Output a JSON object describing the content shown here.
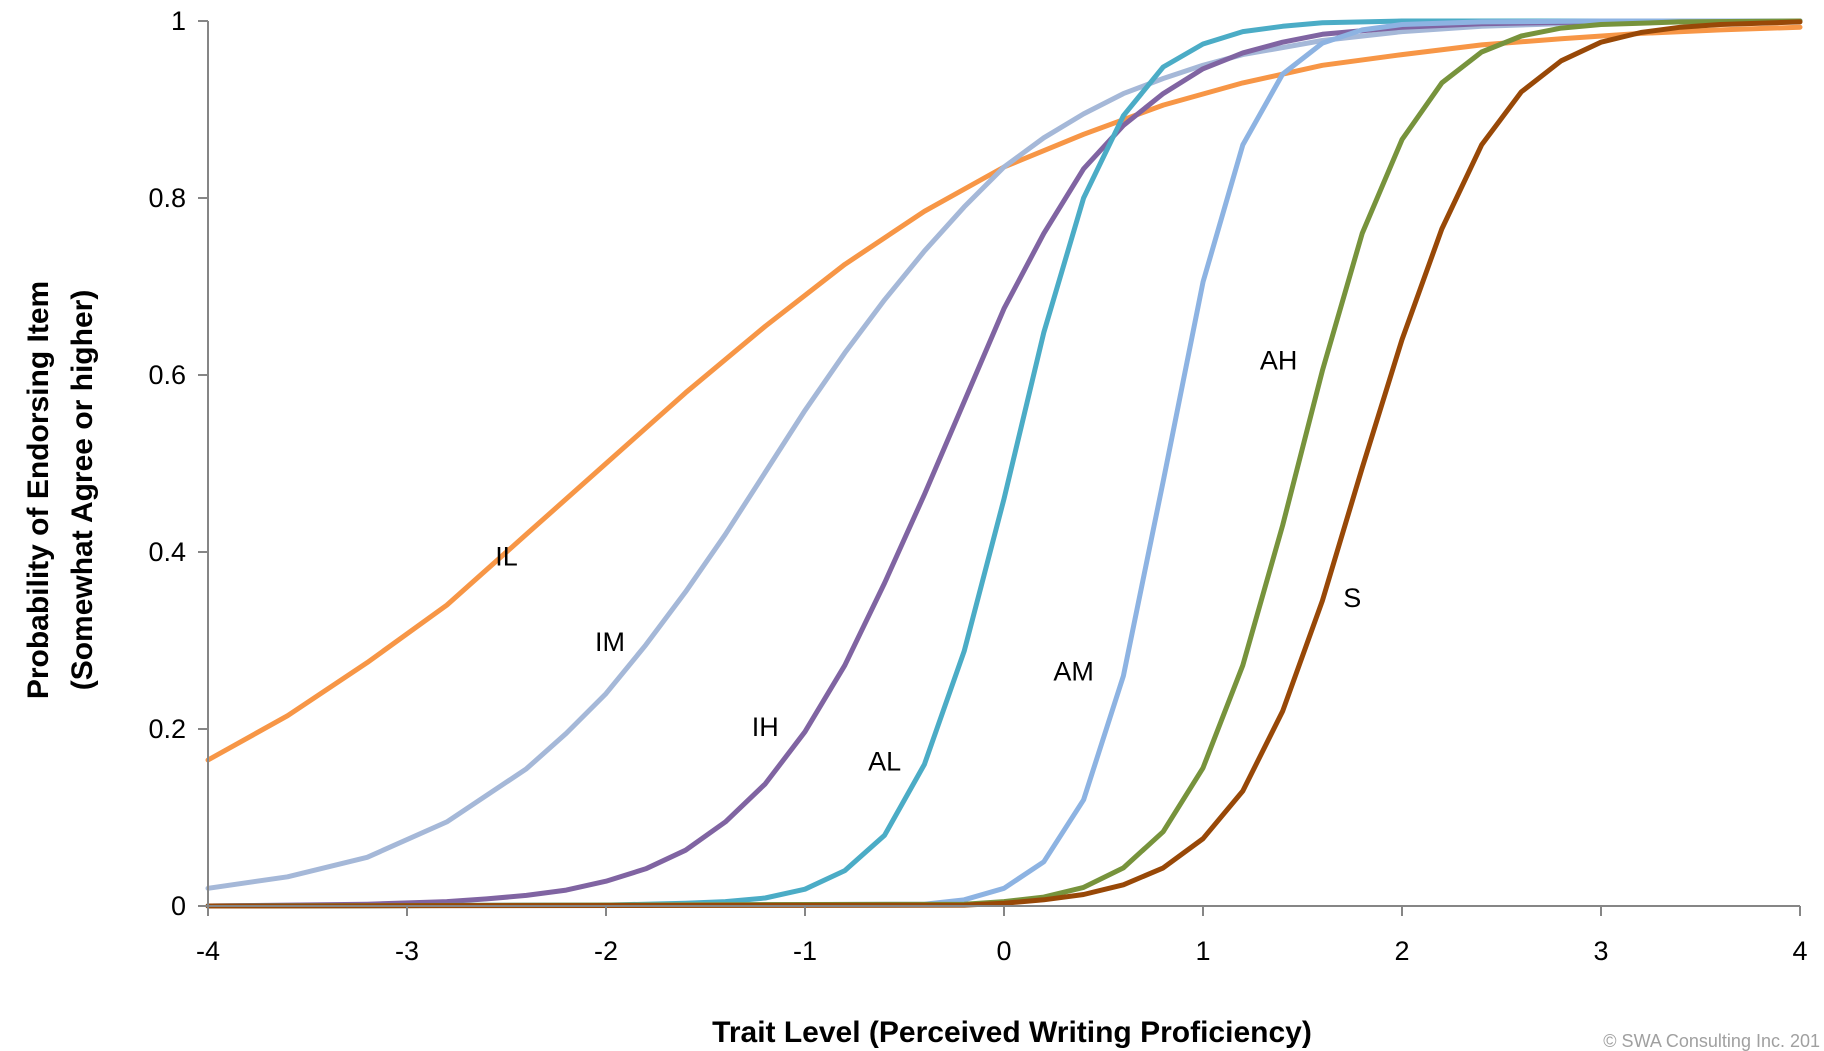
{
  "chart_data": {
    "type": "line",
    "xlabel": "Trait Level (Perceived Writing Proficiency)",
    "ylabel_line1": "Probability of Endorsing Item",
    "ylabel_line2": "(Somewhat Agree or higher)",
    "xlim": [
      -4,
      4
    ],
    "ylim": [
      0,
      1
    ],
    "x_ticks": [
      -4,
      -3,
      -2,
      -1,
      0,
      1,
      2,
      3,
      4
    ],
    "x_tick_labels": [
      "-4",
      "-3",
      "-2",
      "-1",
      "0",
      "1",
      "2",
      "3",
      "4"
    ],
    "y_ticks": [
      0,
      0.2,
      0.4,
      0.6,
      0.8,
      1
    ],
    "y_tick_labels": [
      "0",
      "0.2",
      "0.4",
      "0.6",
      "0.8",
      "1"
    ],
    "grid": false,
    "legend": "none (series labelled directly on curves)",
    "copyright": "© SWA Consulting Inc. 201",
    "series": [
      {
        "name": "IL",
        "color": "#f79646",
        "x": [
          -4,
          -3.6,
          -3.2,
          -2.8,
          -2.4,
          -2.0,
          -1.6,
          -1.2,
          -0.8,
          -0.4,
          0.0,
          0.4,
          0.8,
          1.2,
          1.6,
          2.0,
          2.4,
          2.8,
          3.2,
          3.6,
          4.0
        ],
        "y": [
          0.165,
          0.215,
          0.275,
          0.34,
          0.42,
          0.5,
          0.58,
          0.655,
          0.725,
          0.785,
          0.835,
          0.872,
          0.905,
          0.93,
          0.95,
          0.962,
          0.973,
          0.98,
          0.986,
          0.99,
          0.993
        ]
      },
      {
        "name": "IM",
        "color": "#a5b8d8",
        "x": [
          -4,
          -3.6,
          -3.2,
          -2.8,
          -2.4,
          -2.2,
          -2.0,
          -1.8,
          -1.6,
          -1.4,
          -1.2,
          -1.0,
          -0.8,
          -0.6,
          -0.4,
          -0.2,
          0.0,
          0.2,
          0.4,
          0.6,
          0.8,
          1.0,
          1.2,
          1.6,
          2.0,
          2.4,
          2.8,
          3.2,
          4.0
        ],
        "y": [
          0.02,
          0.033,
          0.055,
          0.095,
          0.155,
          0.195,
          0.24,
          0.295,
          0.355,
          0.42,
          0.49,
          0.56,
          0.625,
          0.685,
          0.74,
          0.79,
          0.835,
          0.868,
          0.895,
          0.918,
          0.935,
          0.95,
          0.962,
          0.978,
          0.988,
          0.994,
          0.997,
          0.999,
          1.0
        ]
      },
      {
        "name": "IH",
        "color": "#8064a2",
        "x": [
          -4,
          -3.6,
          -3.2,
          -2.8,
          -2.6,
          -2.4,
          -2.2,
          -2.0,
          -1.8,
          -1.6,
          -1.4,
          -1.2,
          -1.0,
          -0.8,
          -0.6,
          -0.4,
          -0.2,
          0.0,
          0.2,
          0.4,
          0.6,
          0.8,
          1.0,
          1.2,
          1.4,
          1.6,
          2.0,
          2.4,
          3.0,
          4.0
        ],
        "y": [
          0.0,
          0.001,
          0.002,
          0.005,
          0.008,
          0.012,
          0.018,
          0.028,
          0.042,
          0.063,
          0.095,
          0.138,
          0.197,
          0.272,
          0.365,
          0.465,
          0.57,
          0.675,
          0.76,
          0.833,
          0.882,
          0.918,
          0.946,
          0.964,
          0.976,
          0.985,
          0.993,
          0.997,
          0.999,
          1.0
        ]
      },
      {
        "name": "AL",
        "color": "#4bacc6",
        "x": [
          -4,
          -2.0,
          -1.6,
          -1.4,
          -1.2,
          -1.0,
          -0.8,
          -0.6,
          -0.4,
          -0.2,
          0.0,
          0.2,
          0.4,
          0.6,
          0.8,
          1.0,
          1.2,
          1.4,
          1.6,
          2.0,
          3.0,
          4.0
        ],
        "y": [
          0.0,
          0.001,
          0.003,
          0.005,
          0.009,
          0.019,
          0.04,
          0.08,
          0.16,
          0.288,
          0.46,
          0.648,
          0.8,
          0.893,
          0.948,
          0.974,
          0.988,
          0.994,
          0.998,
          1.0,
          1.0,
          1.0
        ]
      },
      {
        "name": "AM",
        "color": "#8db3e2",
        "x": [
          -4,
          -0.4,
          -0.2,
          0.0,
          0.2,
          0.4,
          0.6,
          0.8,
          1.0,
          1.2,
          1.4,
          1.6,
          1.8,
          2.0,
          2.4,
          3.0,
          4.0
        ],
        "y": [
          0.0,
          0.002,
          0.007,
          0.02,
          0.05,
          0.12,
          0.26,
          0.48,
          0.705,
          0.86,
          0.94,
          0.975,
          0.99,
          0.996,
          0.999,
          1.0,
          1.0
        ]
      },
      {
        "name": "AH",
        "color": "#77933c",
        "x": [
          -4,
          -0.2,
          0.0,
          0.2,
          0.4,
          0.6,
          0.8,
          1.0,
          1.2,
          1.4,
          1.6,
          1.8,
          2.0,
          2.2,
          2.4,
          2.6,
          2.8,
          3.0,
          3.4,
          4.0
        ],
        "y": [
          0.0,
          0.002,
          0.005,
          0.01,
          0.021,
          0.043,
          0.084,
          0.156,
          0.272,
          0.43,
          0.605,
          0.76,
          0.866,
          0.93,
          0.965,
          0.983,
          0.992,
          0.996,
          0.999,
          1.0
        ]
      },
      {
        "name": "S",
        "color": "#984807",
        "x": [
          -4,
          -0.2,
          0.0,
          0.2,
          0.4,
          0.6,
          0.8,
          1.0,
          1.2,
          1.4,
          1.6,
          1.8,
          2.0,
          2.2,
          2.4,
          2.6,
          2.8,
          3.0,
          3.2,
          3.4,
          3.6,
          4.0
        ],
        "y": [
          0.0,
          0.001,
          0.003,
          0.007,
          0.013,
          0.024,
          0.043,
          0.076,
          0.13,
          0.22,
          0.345,
          0.495,
          0.64,
          0.765,
          0.86,
          0.92,
          0.955,
          0.976,
          0.987,
          0.993,
          0.996,
          0.999
        ]
      }
    ],
    "annotations": [
      {
        "text": "IL",
        "x": -2.5,
        "y": 0.385
      },
      {
        "text": "IM",
        "x": -1.98,
        "y": 0.288
      },
      {
        "text": "IH",
        "x": -1.2,
        "y": 0.192
      },
      {
        "text": "AL",
        "x": -0.6,
        "y": 0.153
      },
      {
        "text": "AM",
        "x": 0.35,
        "y": 0.255
      },
      {
        "text": "AH",
        "x": 1.38,
        "y": 0.606
      },
      {
        "text": "S",
        "x": 1.75,
        "y": 0.338
      }
    ]
  }
}
